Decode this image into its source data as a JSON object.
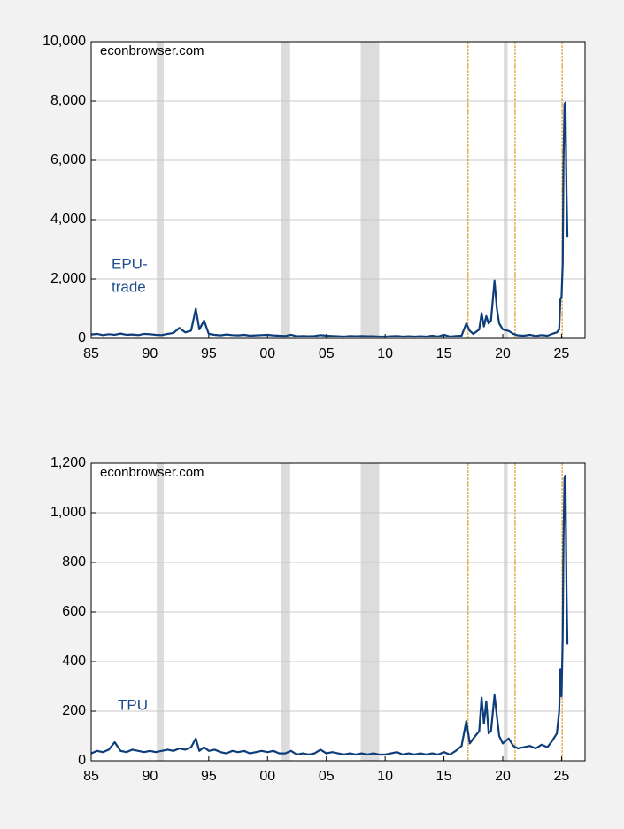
{
  "chart_data": [
    {
      "type": "line",
      "annotations": [
        "econbrowser.com"
      ],
      "label_lines": [
        "EPU-",
        "trade"
      ],
      "xlim": [
        1985,
        2027
      ],
      "xticks": [
        {
          "value": 1985,
          "label": "85"
        },
        {
          "value": 1990,
          "label": "90"
        },
        {
          "value": 1995,
          "label": "95"
        },
        {
          "value": 2000,
          "label": "00"
        },
        {
          "value": 2005,
          "label": "05"
        },
        {
          "value": 2010,
          "label": "10"
        },
        {
          "value": 2015,
          "label": "15"
        },
        {
          "value": 2020,
          "label": "20"
        },
        {
          "value": 2025,
          "label": "25"
        }
      ],
      "ylim": [
        0,
        10000
      ],
      "yticks": [
        0,
        {
          "value": 2000,
          "label": "2,000"
        },
        {
          "value": 4000,
          "label": "4,000"
        },
        {
          "value": 6000,
          "label": "6,000"
        },
        {
          "value": 8000,
          "label": "8,000"
        },
        {
          "value": 10000,
          "label": "10,000"
        }
      ],
      "grid": true,
      "recessions": [
        [
          1990.58,
          1991.17
        ],
        [
          2001.17,
          2001.92
        ],
        [
          2007.92,
          2009.5
        ],
        [
          2020.08,
          2020.42
        ]
      ],
      "recession_color": "#dcdcdc",
      "event_lines": [
        2017.05,
        2021.05,
        2025.05
      ],
      "event_color": "#d98b00",
      "series": [
        {
          "color": "#0d3d7a",
          "x": [
            1985.0,
            1985.5,
            1986.0,
            1986.5,
            1987.0,
            1987.5,
            1988.0,
            1988.5,
            1989.0,
            1989.5,
            1990.0,
            1990.5,
            1991.0,
            1991.5,
            1992.0,
            1992.5,
            1993.0,
            1993.5,
            1993.9,
            1994.2,
            1994.6,
            1995.0,
            1995.5,
            1996.0,
            1996.5,
            1997.0,
            1997.5,
            1998.0,
            1998.5,
            1999.0,
            1999.5,
            2000.0,
            2000.5,
            2001.0,
            2001.5,
            2002.0,
            2002.5,
            2003.0,
            2003.5,
            2004.0,
            2004.5,
            2005.0,
            2005.5,
            2006.0,
            2006.5,
            2007.0,
            2007.5,
            2008.0,
            2008.5,
            2009.0,
            2009.5,
            2010.0,
            2010.5,
            2011.0,
            2011.5,
            2012.0,
            2012.5,
            2013.0,
            2013.5,
            2014.0,
            2014.5,
            2015.0,
            2015.5,
            2016.0,
            2016.5,
            2016.9,
            2017.2,
            2017.5,
            2018.0,
            2018.2,
            2018.4,
            2018.6,
            2018.8,
            2019.0,
            2019.3,
            2019.5,
            2019.7,
            2020.0,
            2020.5,
            2020.9,
            2021.3,
            2021.8,
            2022.3,
            2022.8,
            2023.3,
            2023.8,
            2024.2,
            2024.6,
            2024.8,
            2024.9,
            2025.0,
            2025.1,
            2025.17,
            2025.25,
            2025.33,
            2025.42,
            2025.5
          ],
          "values": [
            130,
            150,
            110,
            140,
            120,
            160,
            120,
            130,
            110,
            150,
            140,
            120,
            110,
            150,
            180,
            350,
            200,
            260,
            1000,
            300,
            600,
            150,
            120,
            100,
            130,
            110,
            100,
            120,
            90,
            100,
            110,
            120,
            100,
            90,
            80,
            120,
            70,
            80,
            70,
            80,
            110,
            90,
            80,
            70,
            60,
            80,
            70,
            80,
            70,
            70,
            60,
            60,
            70,
            80,
            60,
            70,
            60,
            70,
            60,
            90,
            60,
            120,
            60,
            80,
            90,
            500,
            250,
            150,
            300,
            850,
            400,
            750,
            500,
            600,
            1950,
            1000,
            500,
            300,
            250,
            150,
            100,
            90,
            120,
            80,
            110,
            90,
            150,
            200,
            300,
            1300,
            1400,
            2500,
            6000,
            7900,
            7950,
            5000,
            3400
          ]
        }
      ]
    },
    {
      "type": "line",
      "annotations": [
        "econbrowser.com"
      ],
      "label_lines": [
        "TPU"
      ],
      "xlim": [
        1985,
        2027
      ],
      "xticks": [
        {
          "value": 1985,
          "label": "85"
        },
        {
          "value": 1990,
          "label": "90"
        },
        {
          "value": 1995,
          "label": "95"
        },
        {
          "value": 2000,
          "label": "00"
        },
        {
          "value": 2005,
          "label": "05"
        },
        {
          "value": 2010,
          "label": "10"
        },
        {
          "value": 2015,
          "label": "15"
        },
        {
          "value": 2020,
          "label": "20"
        },
        {
          "value": 2025,
          "label": "25"
        }
      ],
      "ylim": [
        0,
        1200
      ],
      "yticks": [
        0,
        200,
        400,
        600,
        800,
        {
          "value": 1000,
          "label": "1,000"
        },
        {
          "value": 1200,
          "label": "1,200"
        }
      ],
      "grid": true,
      "recessions": [
        [
          1990.58,
          1991.17
        ],
        [
          2001.17,
          2001.92
        ],
        [
          2007.92,
          2009.5
        ],
        [
          2020.08,
          2020.42
        ]
      ],
      "recession_color": "#dcdcdc",
      "event_lines": [
        2017.05,
        2021.05,
        2025.05
      ],
      "event_color": "#d98b00",
      "series": [
        {
          "color": "#0d3d7a",
          "x": [
            1985.0,
            1985.5,
            1986.0,
            1986.5,
            1987.0,
            1987.5,
            1988.0,
            1988.5,
            1989.0,
            1989.5,
            1990.0,
            1990.5,
            1991.0,
            1991.5,
            1992.0,
            1992.5,
            1993.0,
            1993.5,
            1993.9,
            1994.2,
            1994.6,
            1995.0,
            1995.5,
            1996.0,
            1996.5,
            1997.0,
            1997.5,
            1998.0,
            1998.5,
            1999.0,
            1999.5,
            2000.0,
            2000.5,
            2001.0,
            2001.5,
            2002.0,
            2002.5,
            2003.0,
            2003.5,
            2004.0,
            2004.5,
            2005.0,
            2005.5,
            2006.0,
            2006.5,
            2007.0,
            2007.5,
            2008.0,
            2008.5,
            2009.0,
            2009.5,
            2010.0,
            2010.5,
            2011.0,
            2011.5,
            2012.0,
            2012.5,
            2013.0,
            2013.5,
            2014.0,
            2014.5,
            2015.0,
            2015.5,
            2016.0,
            2016.5,
            2016.9,
            2017.2,
            2017.5,
            2018.0,
            2018.2,
            2018.4,
            2018.6,
            2018.8,
            2019.0,
            2019.3,
            2019.5,
            2019.7,
            2020.0,
            2020.5,
            2020.9,
            2021.3,
            2021.8,
            2022.3,
            2022.8,
            2023.3,
            2023.8,
            2024.2,
            2024.6,
            2024.8,
            2024.9,
            2025.0,
            2025.1,
            2025.17,
            2025.25,
            2025.33,
            2025.42,
            2025.5
          ],
          "values": [
            30,
            40,
            35,
            45,
            75,
            40,
            35,
            45,
            40,
            35,
            40,
            35,
            40,
            45,
            40,
            50,
            45,
            55,
            90,
            40,
            55,
            40,
            45,
            35,
            30,
            40,
            35,
            40,
            30,
            35,
            40,
            35,
            40,
            30,
            30,
            40,
            25,
            30,
            25,
            30,
            45,
            30,
            35,
            30,
            25,
            30,
            25,
            30,
            25,
            30,
            25,
            25,
            30,
            35,
            25,
            30,
            25,
            30,
            25,
            30,
            25,
            35,
            25,
            40,
            60,
            160,
            70,
            90,
            120,
            255,
            150,
            240,
            110,
            120,
            265,
            180,
            100,
            70,
            90,
            60,
            50,
            55,
            60,
            50,
            65,
            55,
            80,
            110,
            200,
            370,
            260,
            500,
            900,
            1140,
            1150,
            700,
            470
          ]
        }
      ]
    }
  ]
}
